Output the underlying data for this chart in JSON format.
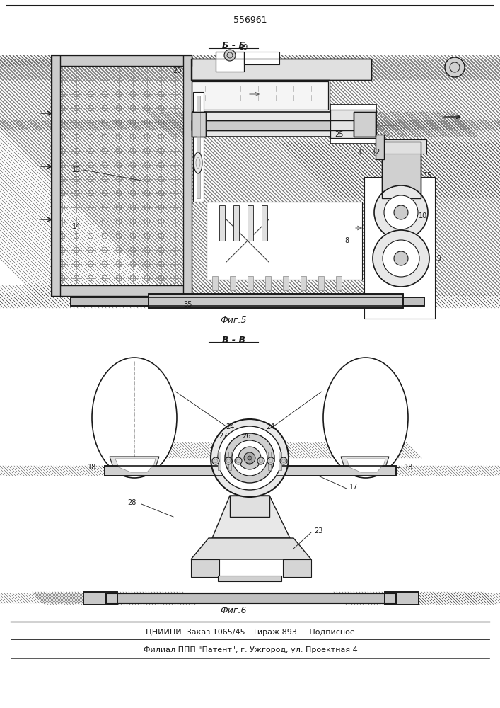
{
  "patent_number": "556961",
  "fig3_label": "Фиг.5",
  "fig6_label": "Фиг.6",
  "section_b_b": "Б - Б",
  "section_v_v": "В - В",
  "footer_line1": "ЦНИИПИ  Заказ 1065/45   Тираж 893     Подписное",
  "footer_line2": "Филиал ППП \"Патент\", г. Ужгород, ул. Проектная 4",
  "bg_color": "#ffffff",
  "line_color": "#1a1a1a"
}
